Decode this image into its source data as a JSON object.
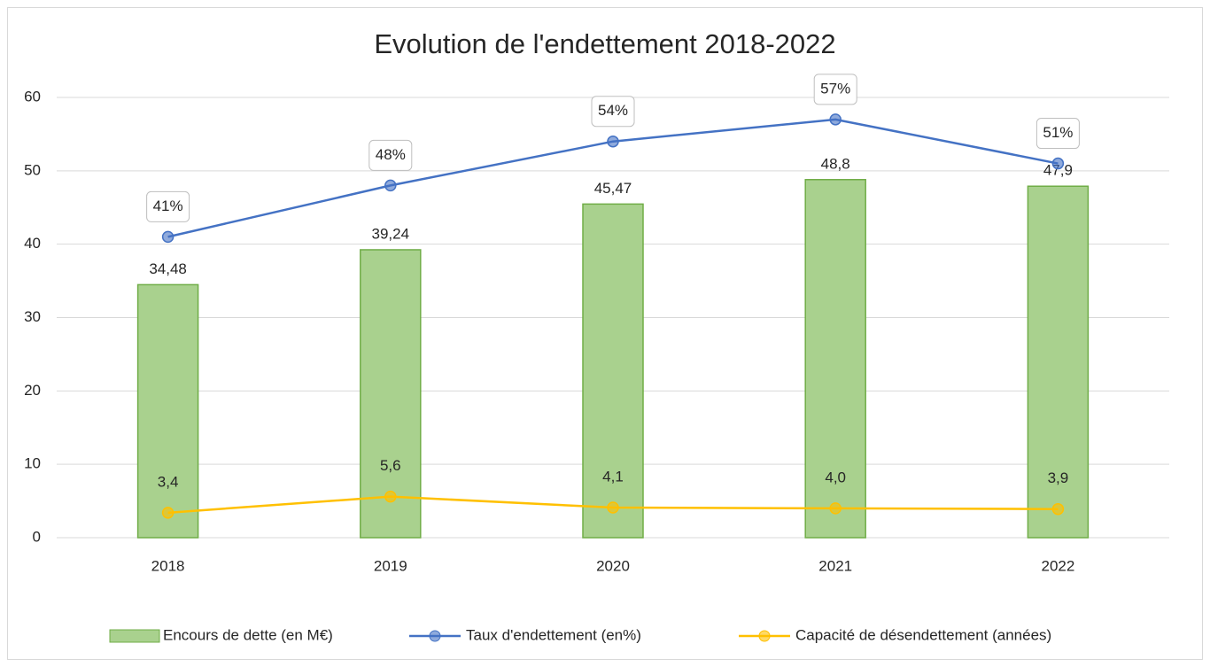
{
  "chart_data": {
    "type": "bar",
    "title": "Evolution de l'endettement 2018-2022",
    "categories": [
      "2018",
      "2019",
      "2020",
      "2021",
      "2022"
    ],
    "series": [
      {
        "name": "Encours de dette (en M€)",
        "type": "bar",
        "color": "#a9d18e",
        "values": [
          34.48,
          39.24,
          45.47,
          48.8,
          47.9
        ],
        "value_labels": [
          "34,48",
          "39,24",
          "45,47",
          "48,8",
          "47,9"
        ]
      },
      {
        "name": "Taux d'endettement (en%)",
        "type": "line",
        "color": "#4472c4",
        "values": [
          41,
          48,
          54,
          57,
          51
        ],
        "value_labels": [
          "41%",
          "48%",
          "54%",
          "57%",
          "51%"
        ]
      },
      {
        "name": "Capacité de désendettement (années)",
        "type": "line",
        "color": "#ffc000",
        "values": [
          3.4,
          5.6,
          4.1,
          4.0,
          3.9
        ],
        "value_labels": [
          "3,4",
          "5,6",
          "4,1",
          "4,0",
          "3,9"
        ]
      }
    ],
    "ylim": [
      0,
      60
    ],
    "yticks": [
      0,
      10,
      20,
      30,
      40,
      50,
      60
    ],
    "grid": true,
    "legend": "bottom"
  }
}
